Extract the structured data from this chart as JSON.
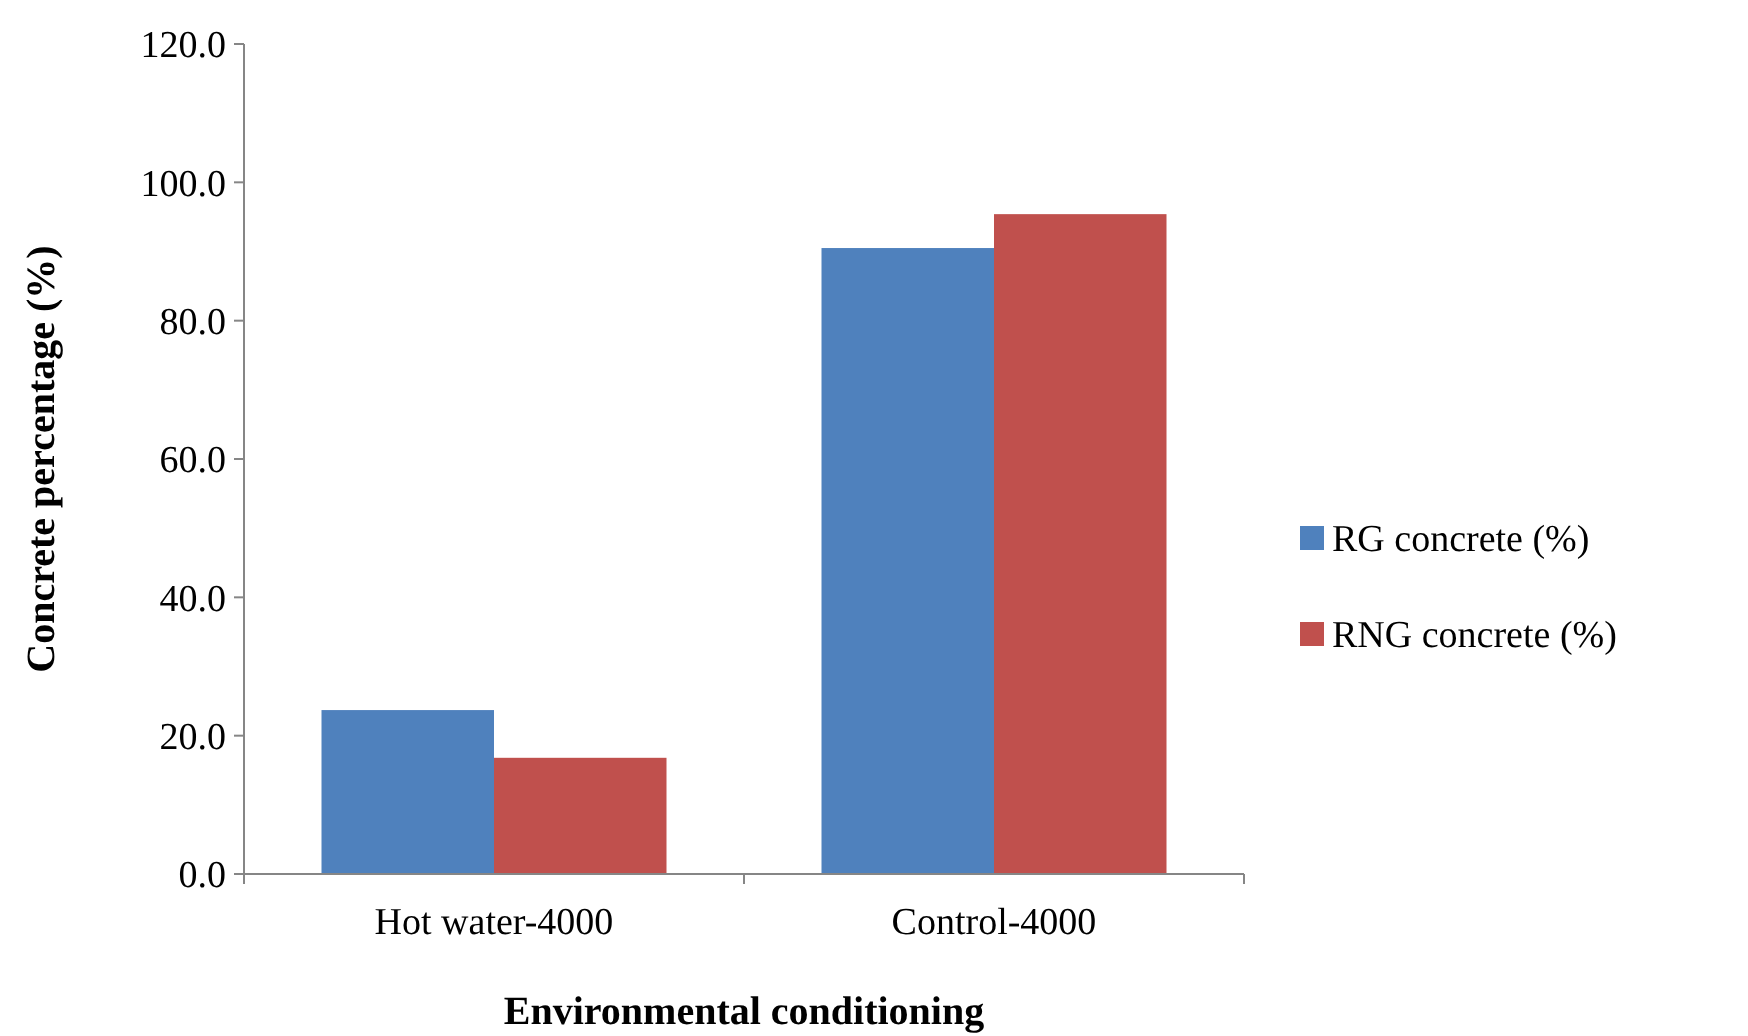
{
  "chart_data": {
    "type": "bar",
    "xlabel": "Environmental conditioning",
    "ylabel": "Concrete percentage (%)",
    "categories": [
      "Hot water-4000",
      "Control-4000"
    ],
    "series": [
      {
        "name": "RG concrete (%)",
        "color": "#4f81bd",
        "values": [
          23.7,
          90.5
        ]
      },
      {
        "name": "RNG concrete (%)",
        "color": "#c0504d",
        "values": [
          16.8,
          95.4
        ]
      }
    ],
    "ylim": [
      0,
      120
    ],
    "yticks": [
      {
        "value": 0,
        "label": "0.0"
      },
      {
        "value": 20,
        "label": "20.0"
      },
      {
        "value": 40,
        "label": "40.0"
      },
      {
        "value": 60,
        "label": "60.0"
      },
      {
        "value": 80,
        "label": "80.0"
      },
      {
        "value": 100,
        "label": "100.0"
      },
      {
        "value": 120,
        "label": "120.0"
      }
    ],
    "legend": "right"
  }
}
